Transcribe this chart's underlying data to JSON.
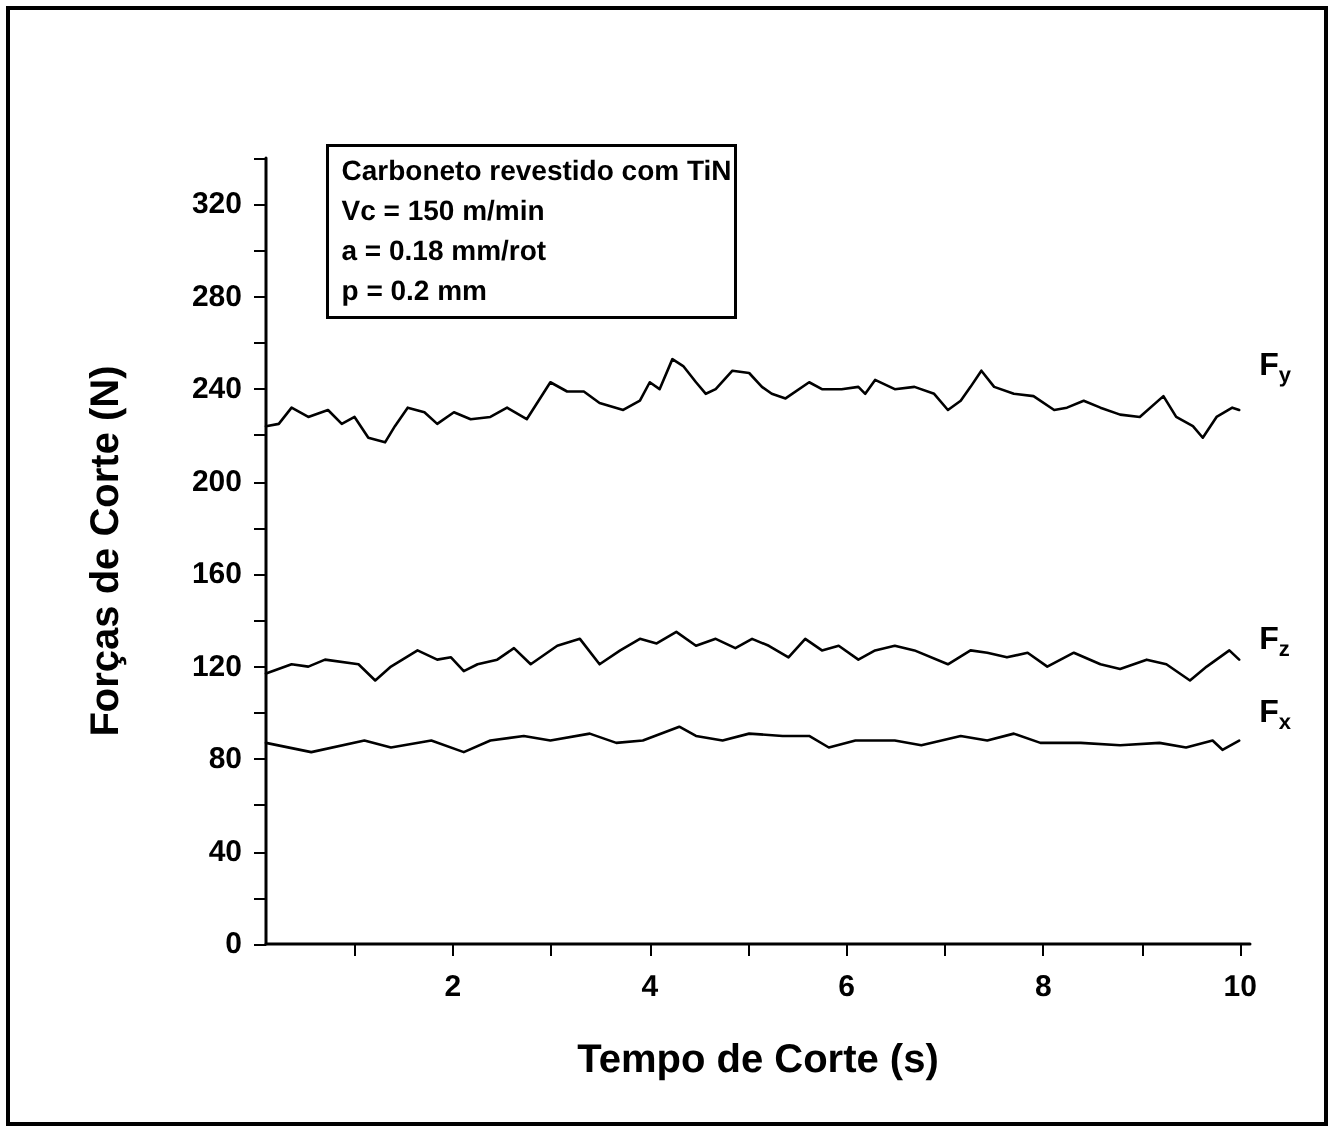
{
  "chart_data": {
    "type": "line",
    "xlabel": "Tempo de Corte (s)",
    "ylabel": "Forças de Corte (N)",
    "annotations": [
      "Carboneto revestido com TiN",
      "Vc = 150 m/min",
      "a = 0.18 mm/rot",
      "p = 0.2 mm"
    ],
    "xlim": [
      0.1,
      10.1
    ],
    "xticks": [
      {
        "value": 1,
        "label": null
      },
      2,
      {
        "value": 3,
        "label": null
      },
      4,
      {
        "value": 5,
        "label": null
      },
      6,
      {
        "value": 7,
        "label": null
      },
      8,
      {
        "value": 9,
        "label": null
      },
      10
    ],
    "ylim": [
      0,
      340
    ],
    "yticks": [
      0,
      {
        "value": 20,
        "label": null
      },
      40,
      {
        "value": 60,
        "label": null
      },
      80,
      {
        "value": 100,
        "label": null
      },
      120,
      {
        "value": 140,
        "label": null
      },
      160,
      {
        "value": 180,
        "label": null
      },
      200,
      {
        "value": 220,
        "label": null
      },
      240,
      {
        "value": 260,
        "label": null
      },
      280,
      {
        "value": 300,
        "label": null
      },
      320,
      {
        "value": 340,
        "label": null
      }
    ],
    "grid": false,
    "legend": false,
    "marker": "none",
    "line_style": "solid",
    "series": [
      {
        "name": "F$_{y}$",
        "color": "#000000",
        "x": [
          0.1,
          0.23,
          0.36,
          0.53,
          0.73,
          0.87,
          1.0,
          1.14,
          1.31,
          1.41,
          1.54,
          1.71,
          1.84,
          2.01,
          2.18,
          2.38,
          2.55,
          2.75,
          2.99,
          3.16,
          3.33,
          3.49,
          3.73,
          3.9,
          4.0,
          4.1,
          4.23,
          4.34,
          4.47,
          4.57,
          4.67,
          4.84,
          5.01,
          5.14,
          5.24,
          5.38,
          5.62,
          5.75,
          5.95,
          6.12,
          6.19,
          6.29,
          6.49,
          6.69,
          6.89,
          7.03,
          7.16,
          7.26,
          7.37,
          7.5,
          7.7,
          7.9,
          8.11,
          8.24,
          8.41,
          8.58,
          8.78,
          8.98,
          9.22,
          9.35,
          9.52,
          9.62,
          9.76,
          9.92,
          9.99
        ],
        "values": [
          224,
          225,
          232,
          228,
          231,
          225,
          228,
          219,
          217,
          224,
          232,
          230,
          225,
          230,
          227,
          228,
          232,
          227,
          243,
          239,
          239,
          234,
          231,
          235,
          243,
          240,
          253,
          250,
          243,
          238,
          240,
          248,
          247,
          241,
          238,
          236,
          243,
          240,
          240,
          241,
          238,
          244,
          240,
          241,
          238,
          231,
          235,
          241,
          248,
          241,
          238,
          237,
          231,
          232,
          235,
          232,
          229,
          228,
          237,
          228,
          224,
          219,
          228,
          232,
          231
        ]
      },
      {
        "name": "F$_{z}$",
        "color": "#000000",
        "x": [
          0.1,
          0.36,
          0.53,
          0.7,
          1.04,
          1.21,
          1.37,
          1.64,
          1.84,
          1.98,
          2.11,
          2.25,
          2.45,
          2.62,
          2.79,
          3.06,
          3.29,
          3.49,
          3.7,
          3.9,
          4.07,
          4.27,
          4.47,
          4.67,
          4.87,
          5.04,
          5.21,
          5.41,
          5.58,
          5.75,
          5.92,
          6.12,
          6.29,
          6.49,
          6.69,
          7.03,
          7.26,
          7.43,
          7.63,
          7.84,
          8.04,
          8.31,
          8.58,
          8.78,
          9.05,
          9.25,
          9.49,
          9.66,
          9.89,
          9.99
        ],
        "values": [
          117,
          121,
          120,
          123,
          121,
          114,
          120,
          127,
          123,
          124,
          118,
          121,
          123,
          128,
          121,
          129,
          132,
          121,
          127,
          132,
          130,
          135,
          129,
          132,
          128,
          132,
          129,
          124,
          132,
          127,
          129,
          123,
          127,
          129,
          127,
          121,
          127,
          126,
          124,
          126,
          120,
          126,
          121,
          119,
          123,
          121,
          114,
          120,
          127,
          123
        ]
      },
      {
        "name": "F$_{x}$",
        "color": "#000000",
        "x": [
          0.1,
          0.56,
          1.1,
          1.37,
          1.78,
          2.11,
          2.38,
          2.72,
          2.99,
          3.39,
          3.66,
          3.93,
          4.3,
          4.47,
          4.74,
          5.01,
          5.35,
          5.62,
          5.82,
          6.09,
          6.49,
          6.76,
          7.16,
          7.43,
          7.7,
          7.97,
          8.38,
          8.78,
          9.18,
          9.45,
          9.72,
          9.82,
          9.99
        ],
        "values": [
          87,
          83,
          88,
          85,
          88,
          83,
          88,
          90,
          88,
          91,
          87,
          88,
          94,
          90,
          88,
          91,
          90,
          90,
          85,
          88,
          88,
          86,
          90,
          88,
          91,
          87,
          87,
          86,
          87,
          85,
          88,
          84,
          88
        ]
      }
    ]
  }
}
